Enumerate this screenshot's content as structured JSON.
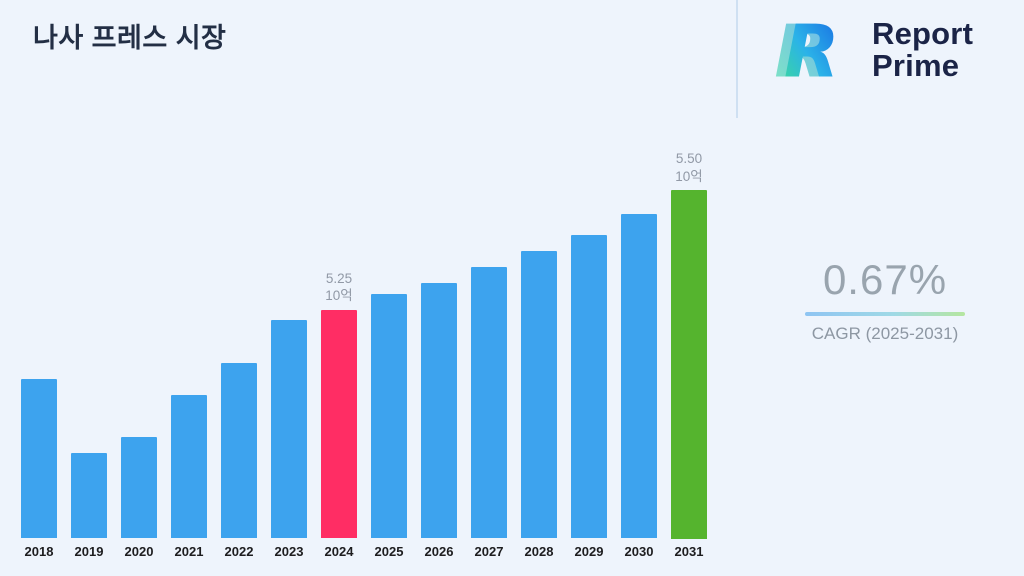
{
  "page": {
    "title": "나사 프레스 시장"
  },
  "brand": {
    "line1": "Report",
    "line2": "Prime",
    "logo_icon": "report-prime-logo"
  },
  "stats": {
    "cagr_value": "0.67%",
    "cagr_label": "CAGR (2025-2031)"
  },
  "chart_data": {
    "type": "bar",
    "title": "나사 프레스 시장",
    "categories": [
      "2018",
      "2019",
      "2020",
      "2021",
      "2022",
      "2023",
      "2024",
      "2025",
      "2026",
      "2027",
      "2028",
      "2029",
      "2030",
      "2031"
    ],
    "values": [
      5.12,
      4.98,
      5.01,
      5.09,
      5.15,
      5.23,
      5.25,
      5.28,
      5.3,
      5.33,
      5.36,
      5.39,
      5.43,
      5.5
    ],
    "unit_label": "10억",
    "annotations": [
      {
        "category": "2024",
        "value_label": "5.25",
        "unit": "10억"
      },
      {
        "category": "2031",
        "value_label": "5.50",
        "unit": "10억"
      }
    ],
    "colors": {
      "default": "#3da3ee",
      "2024": "#ff2d64",
      "2031": "#55b42e"
    },
    "xlabel": "",
    "ylabel": "",
    "ylim": [
      4.82,
      5.55
    ],
    "grid": false,
    "legend": false,
    "background": "#eef4fc"
  }
}
